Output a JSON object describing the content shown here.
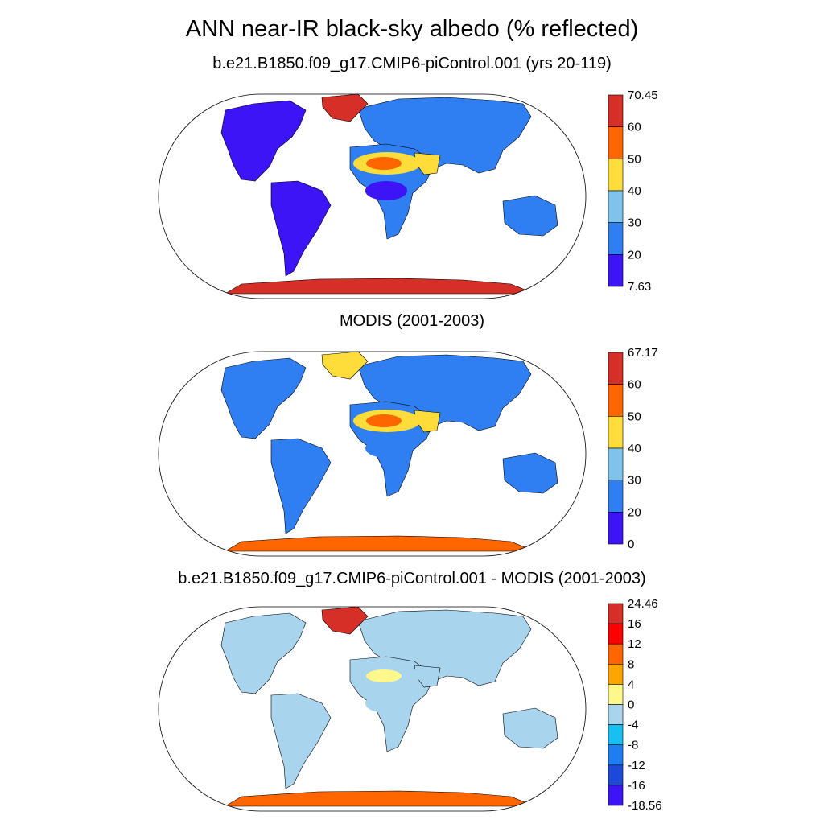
{
  "figure": {
    "title": "ANN near-IR black-sky albedo (% reflected)"
  },
  "chart_data": [
    {
      "type": "heatmap",
      "title": "b.e21.B1850.f09_g17.CMIP6-piControl.001 (yrs 20-119)",
      "colorbar": {
        "min": 7.63,
        "max": 70.45,
        "labels": [
          "70.45",
          "60",
          "50",
          "40",
          "30",
          "20",
          "7.63"
        ],
        "colors": [
          "#d62f27",
          "#ff6600",
          "#fedc39",
          "#7ec4ea",
          "#2f7ff2",
          "#3c14f5"
        ]
      },
      "regions": {
        "antarctica": "#d62f27",
        "greenland": "#d62f27",
        "north_africa": "#fedc39",
        "sahara_core": "#ff6600",
        "arabia": "#fedc39",
        "tropics": "#3c14f5",
        "mid_latitudes": "#3c14f5",
        "boreal": "#2f7ff2",
        "australia": "#2f7ff2",
        "southern_africa": "#2f7ff2"
      }
    },
    {
      "type": "heatmap",
      "title": "MODIS (2001-2003)",
      "colorbar": {
        "min": 0,
        "max": 67.17,
        "labels": [
          "67.17",
          "60",
          "50",
          "40",
          "30",
          "20",
          "0"
        ],
        "colors": [
          "#d62f27",
          "#ff6600",
          "#fedc39",
          "#7ec4ea",
          "#2f7ff2",
          "#3c14f5"
        ]
      },
      "regions": {
        "antarctica": "#ff6600",
        "greenland": "#fedc39",
        "north_africa": "#fedc39",
        "sahara_core": "#ff6600",
        "arabia": "#fedc39",
        "tropics": "#2f7ff2",
        "mid_latitudes": "#2f7ff2",
        "boreal": "#2f7ff2",
        "australia": "#2f7ff2",
        "southern_africa": "#2f7ff2"
      }
    },
    {
      "type": "heatmap",
      "title": "b.e21.B1850.f09_g17.CMIP6-piControl.001 - MODIS (2001-2003)",
      "colorbar": {
        "min": -18.56,
        "max": 24.46,
        "labels": [
          "24.46",
          "16",
          "12",
          "8",
          "4",
          "0",
          "-4",
          "-8",
          "-12",
          "-16",
          "-18.56"
        ],
        "colors": [
          "#d62f27",
          "#ff0000",
          "#ff6600",
          "#ffa500",
          "#fef78a",
          "#a8d4ee",
          "#18bff2",
          "#1e7df0",
          "#1c4ad6",
          "#3c14f5"
        ]
      },
      "regions": {
        "antarctica": "#ff6600",
        "greenland": "#d62f27",
        "north_africa": "#a8d4ee",
        "sahara_core": "#fef78a",
        "arabia": "#a8d4ee",
        "tropics": "#a8d4ee",
        "mid_latitudes": "#a8d4ee",
        "boreal": "#a8d4ee",
        "australia": "#a8d4ee",
        "southern_africa": "#a8d4ee"
      }
    }
  ]
}
